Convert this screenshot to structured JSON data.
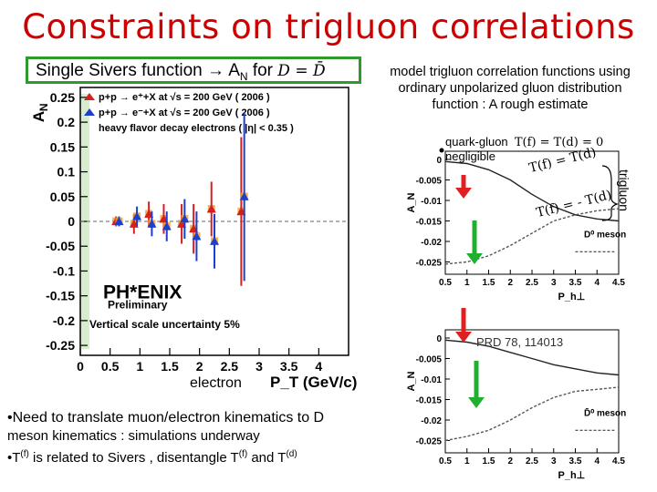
{
  "title": "Constraints on trigluon correlations",
  "subtitle": {
    "text": "Single Sivers function → A",
    "sub": "N",
    "for": " for",
    "equation": "D = D̄"
  },
  "model_note": {
    "line1": "model trigluon correlation functions using",
    "line2": "ordinary unpolarized gluon distribution",
    "line3": "function : A rough estimate"
  },
  "quark_note": {
    "line1": "quark-gluon",
    "line2": "negligible",
    "eq": "T(f) = T(d) = 0"
  },
  "curve_labels": {
    "plus": "T(f) = T(d)",
    "minus": "T(f) = - T(d)",
    "trigluon": "trigluon"
  },
  "reference": "PRD 78, 114013",
  "electron_label": "electron",
  "bullets": {
    "b1": "•Need to translate muon/electron kinematics to D",
    "b2": "meson kinematics : simulations underway",
    "b3_pre": "•T",
    "b3_sup1": "(f)",
    "b3_mid": " is related to Sivers , disentangle T",
    "b3_sup2": "(f)",
    "b3_and": " and T",
    "b3_sup3": "(d)"
  },
  "colors": {
    "title": "#cc0000",
    "box": "#2e9a2e",
    "pp2006": "#d62020",
    "pp2006b": "#1d3fcf",
    "band": "#f0a020",
    "curve": "#555555"
  },
  "chart_data": [
    {
      "type": "scatter",
      "ylabel": "A_N",
      "xlabel": "P_T (GeV/c)",
      "xlim": [
        0,
        4.5
      ],
      "ylim": [
        -0.27,
        0.27
      ],
      "xticks": [
        0,
        0.5,
        1,
        1.5,
        2,
        2.5,
        3,
        3.5,
        4
      ],
      "yticks": [
        -0.25,
        -0.2,
        -0.15,
        -0.1,
        -0.05,
        0,
        0.05,
        0.1,
        0.15,
        0.2,
        0.25
      ],
      "legend": [
        "p+p → e⁺+X at √s = 200 GeV ( 2006 )",
        "p+p → e⁻+X at √s = 200 GeV ( 2006 )",
        "heavy flavor decay electrons ( |η| < 0.35 )"
      ],
      "logo": "PH*ENIX",
      "logo_sub": "Preliminary",
      "note": "Vertical scale uncertainty 5%",
      "series": [
        {
          "name": "p+p → e⁺+X at √s = 200 GeV ( 2006 )",
          "x": [
            0.6,
            0.9,
            1.15,
            1.4,
            1.7,
            1.9,
            2.2,
            2.7
          ],
          "y": [
            0.0,
            -0.005,
            0.015,
            0.005,
            -0.005,
            -0.015,
            0.025,
            0.02
          ],
          "err": [
            0.01,
            0.02,
            0.025,
            0.03,
            0.04,
            0.05,
            0.055,
            0.15
          ]
        },
        {
          "name": "p+p → e⁻+X at √s = 200 GeV ( 2006 )",
          "x": [
            0.65,
            0.95,
            1.2,
            1.45,
            1.75,
            1.95,
            2.25,
            2.75
          ],
          "y": [
            0.0,
            0.01,
            -0.005,
            -0.01,
            0.005,
            -0.03,
            -0.04,
            0.05
          ],
          "err": [
            0.01,
            0.02,
            0.025,
            0.03,
            0.04,
            0.05,
            0.055,
            0.17
          ]
        }
      ]
    },
    {
      "type": "line",
      "ylabel": "A_N",
      "xlabel": "P_h⊥",
      "xlim": [
        0.5,
        4.5
      ],
      "ylim": [
        -0.028,
        0.002
      ],
      "xticks": [
        0.5,
        1,
        1.5,
        2,
        2.5,
        3,
        3.5,
        4,
        4.5
      ],
      "yticks": [
        -0.025,
        -0.02,
        -0.015,
        -0.01,
        -0.005,
        0
      ],
      "legend": [
        "D⁰ meson"
      ],
      "series": [
        {
          "name": "D⁰ meson",
          "x": [
            0.5,
            1,
            1.5,
            2,
            2.5,
            3,
            3.5,
            4,
            4.5
          ],
          "y": [
            -0.0005,
            -0.001,
            -0.0025,
            -0.005,
            -0.0085,
            -0.0115,
            -0.0135,
            -0.0145,
            -0.015
          ]
        },
        {
          "name": "D⁰ meson",
          "x": [
            0.5,
            1,
            1.5,
            2,
            2.5,
            3,
            3.5,
            4,
            4.5
          ],
          "y": [
            -0.0255,
            -0.025,
            -0.0235,
            -0.021,
            -0.018,
            -0.015,
            -0.0135,
            -0.0125,
            -0.012
          ]
        }
      ]
    },
    {
      "type": "line",
      "ylabel": "A_N",
      "xlabel": "P_h⊥",
      "xlim": [
        0.5,
        4.5
      ],
      "ylim": [
        -0.028,
        0.002
      ],
      "xticks": [
        0.5,
        1,
        1.5,
        2,
        2.5,
        3,
        3.5,
        4,
        4.5
      ],
      "yticks": [
        -0.025,
        -0.02,
        -0.015,
        -0.01,
        -0.005,
        0
      ],
      "legend": [
        "D̄⁰ meson"
      ],
      "series": [
        {
          "name": "D̄⁰ meson",
          "x": [
            0.5,
            1,
            1.5,
            2,
            2.5,
            3,
            3.5,
            4,
            4.5
          ],
          "y": [
            -0.0005,
            -0.001,
            -0.002,
            -0.0035,
            -0.005,
            -0.0065,
            -0.0075,
            -0.0085,
            -0.009
          ]
        },
        {
          "name": "D̄⁰ meson",
          "x": [
            0.5,
            1,
            1.5,
            2,
            2.5,
            3,
            3.5,
            4,
            4.5
          ],
          "y": [
            -0.025,
            -0.024,
            -0.0225,
            -0.02,
            -0.017,
            -0.0145,
            -0.013,
            -0.0125,
            -0.012
          ]
        }
      ]
    }
  ]
}
